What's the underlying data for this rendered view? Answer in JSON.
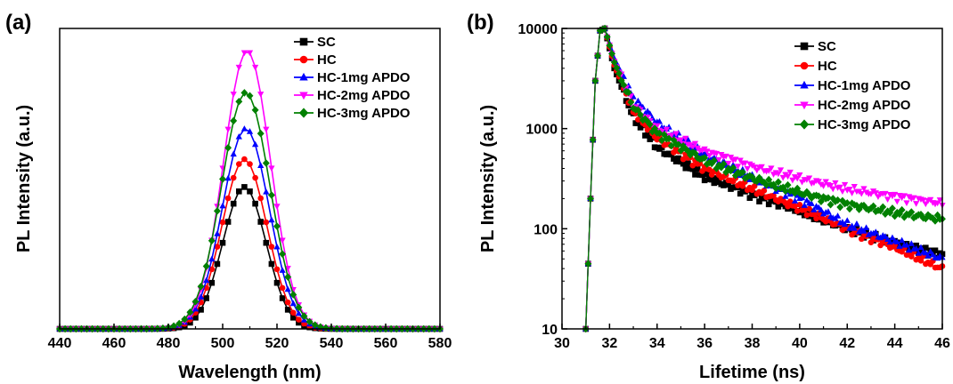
{
  "figure": {
    "panel_a_label": "(a)",
    "panel_b_label": "(b)"
  },
  "colors": {
    "SC": "#000000",
    "HC": "#ff0000",
    "HC-1mg APDO": "#0000ff",
    "HC-2mg APDO": "#ff00ff",
    "HC-3mg APDO": "#008000"
  },
  "chart_data": [
    {
      "type": "line",
      "panel": "(a)",
      "xlabel": "Wavelength (nm)",
      "ylabel": "PL Intensity (a.u.)",
      "xlim": [
        440,
        580
      ],
      "ylim": [
        0,
        1.08
      ],
      "xticks": [
        440,
        460,
        480,
        500,
        520,
        540,
        560,
        580
      ],
      "yticks_shown": false,
      "grid": false,
      "legend_position": "top-right",
      "marker_step_nm": 2,
      "series": [
        {
          "name": "SC",
          "marker": "square",
          "peak_x": 508,
          "peak_y": 0.51,
          "sigma_nm": 8.0
        },
        {
          "name": "HC",
          "marker": "circle",
          "peak_x": 508,
          "peak_y": 0.61,
          "sigma_nm": 8.3
        },
        {
          "name": "HC-1mg APDO",
          "marker": "triangle-up",
          "peak_x": 508.5,
          "peak_y": 0.72,
          "sigma_nm": 8.6
        },
        {
          "name": "HC-2mg APDO",
          "marker": "triangle-down",
          "peak_x": 509,
          "peak_y": 1.0,
          "sigma_nm": 8.6
        },
        {
          "name": "HC-3mg APDO",
          "marker": "diamond",
          "peak_x": 508.5,
          "peak_y": 0.85,
          "sigma_nm": 8.9
        }
      ]
    },
    {
      "type": "scatter",
      "panel": "(b)",
      "xlabel": "Lifetime (ns)",
      "ylabel": "PL Intensity (a.u.)",
      "xlim": [
        30,
        46
      ],
      "ylim": [
        10,
        10000
      ],
      "yscale": "log",
      "xticks": [
        30,
        32,
        34,
        36,
        38,
        40,
        42,
        44,
        46
      ],
      "yticks": [
        10,
        100,
        1000,
        10000
      ],
      "ytick_labels": [
        "10",
        "100",
        "1000",
        "10000"
      ],
      "grid": false,
      "legend_position": "top-right",
      "sample_step_ns": 0.1,
      "series": [
        {
          "name": "SC",
          "marker": "square",
          "x": [
            31.0,
            31.2,
            31.4,
            31.6,
            31.8,
            32.2,
            33.0,
            34.0,
            36.0,
            38.0,
            40.0,
            42.0,
            44.0,
            46.0
          ],
          "y": [
            10,
            200,
            3000,
            9500,
            10000,
            4000,
            1300,
            650,
            330,
            220,
            150,
            100,
            72,
            55
          ]
        },
        {
          "name": "HC",
          "marker": "circle",
          "x": [
            31.0,
            31.2,
            31.4,
            31.6,
            31.8,
            32.2,
            33.0,
            34.0,
            36.0,
            38.0,
            40.0,
            42.0,
            44.0,
            46.0
          ],
          "y": [
            10,
            200,
            3000,
            9500,
            10000,
            4300,
            1500,
            800,
            400,
            250,
            160,
            100,
            65,
            40
          ]
        },
        {
          "name": "HC-1mg APDO",
          "marker": "triangle-up",
          "x": [
            31.0,
            31.2,
            31.4,
            31.6,
            31.8,
            32.2,
            33.0,
            34.0,
            36.0,
            38.0,
            40.0,
            42.0,
            44.0,
            46.0
          ],
          "y": [
            10,
            200,
            3000,
            9500,
            10000,
            5000,
            2000,
            1150,
            550,
            320,
            200,
            110,
            75,
            50
          ]
        },
        {
          "name": "HC-2mg APDO",
          "marker": "triangle-down",
          "x": [
            31.0,
            31.2,
            31.4,
            31.6,
            31.8,
            32.2,
            33.0,
            34.0,
            36.0,
            38.0,
            40.0,
            42.0,
            44.0,
            46.0
          ],
          "y": [
            10,
            200,
            3000,
            9500,
            10000,
            4700,
            1750,
            1000,
            600,
            420,
            320,
            250,
            210,
            180
          ]
        },
        {
          "name": "HC-3mg APDO",
          "marker": "diamond",
          "x": [
            31.0,
            31.2,
            31.4,
            31.6,
            31.8,
            32.2,
            33.0,
            34.0,
            36.0,
            38.0,
            40.0,
            42.0,
            44.0,
            46.0
          ],
          "y": [
            10,
            200,
            3000,
            9500,
            10000,
            4600,
            1650,
            900,
            480,
            320,
            230,
            175,
            145,
            125
          ]
        }
      ]
    }
  ]
}
